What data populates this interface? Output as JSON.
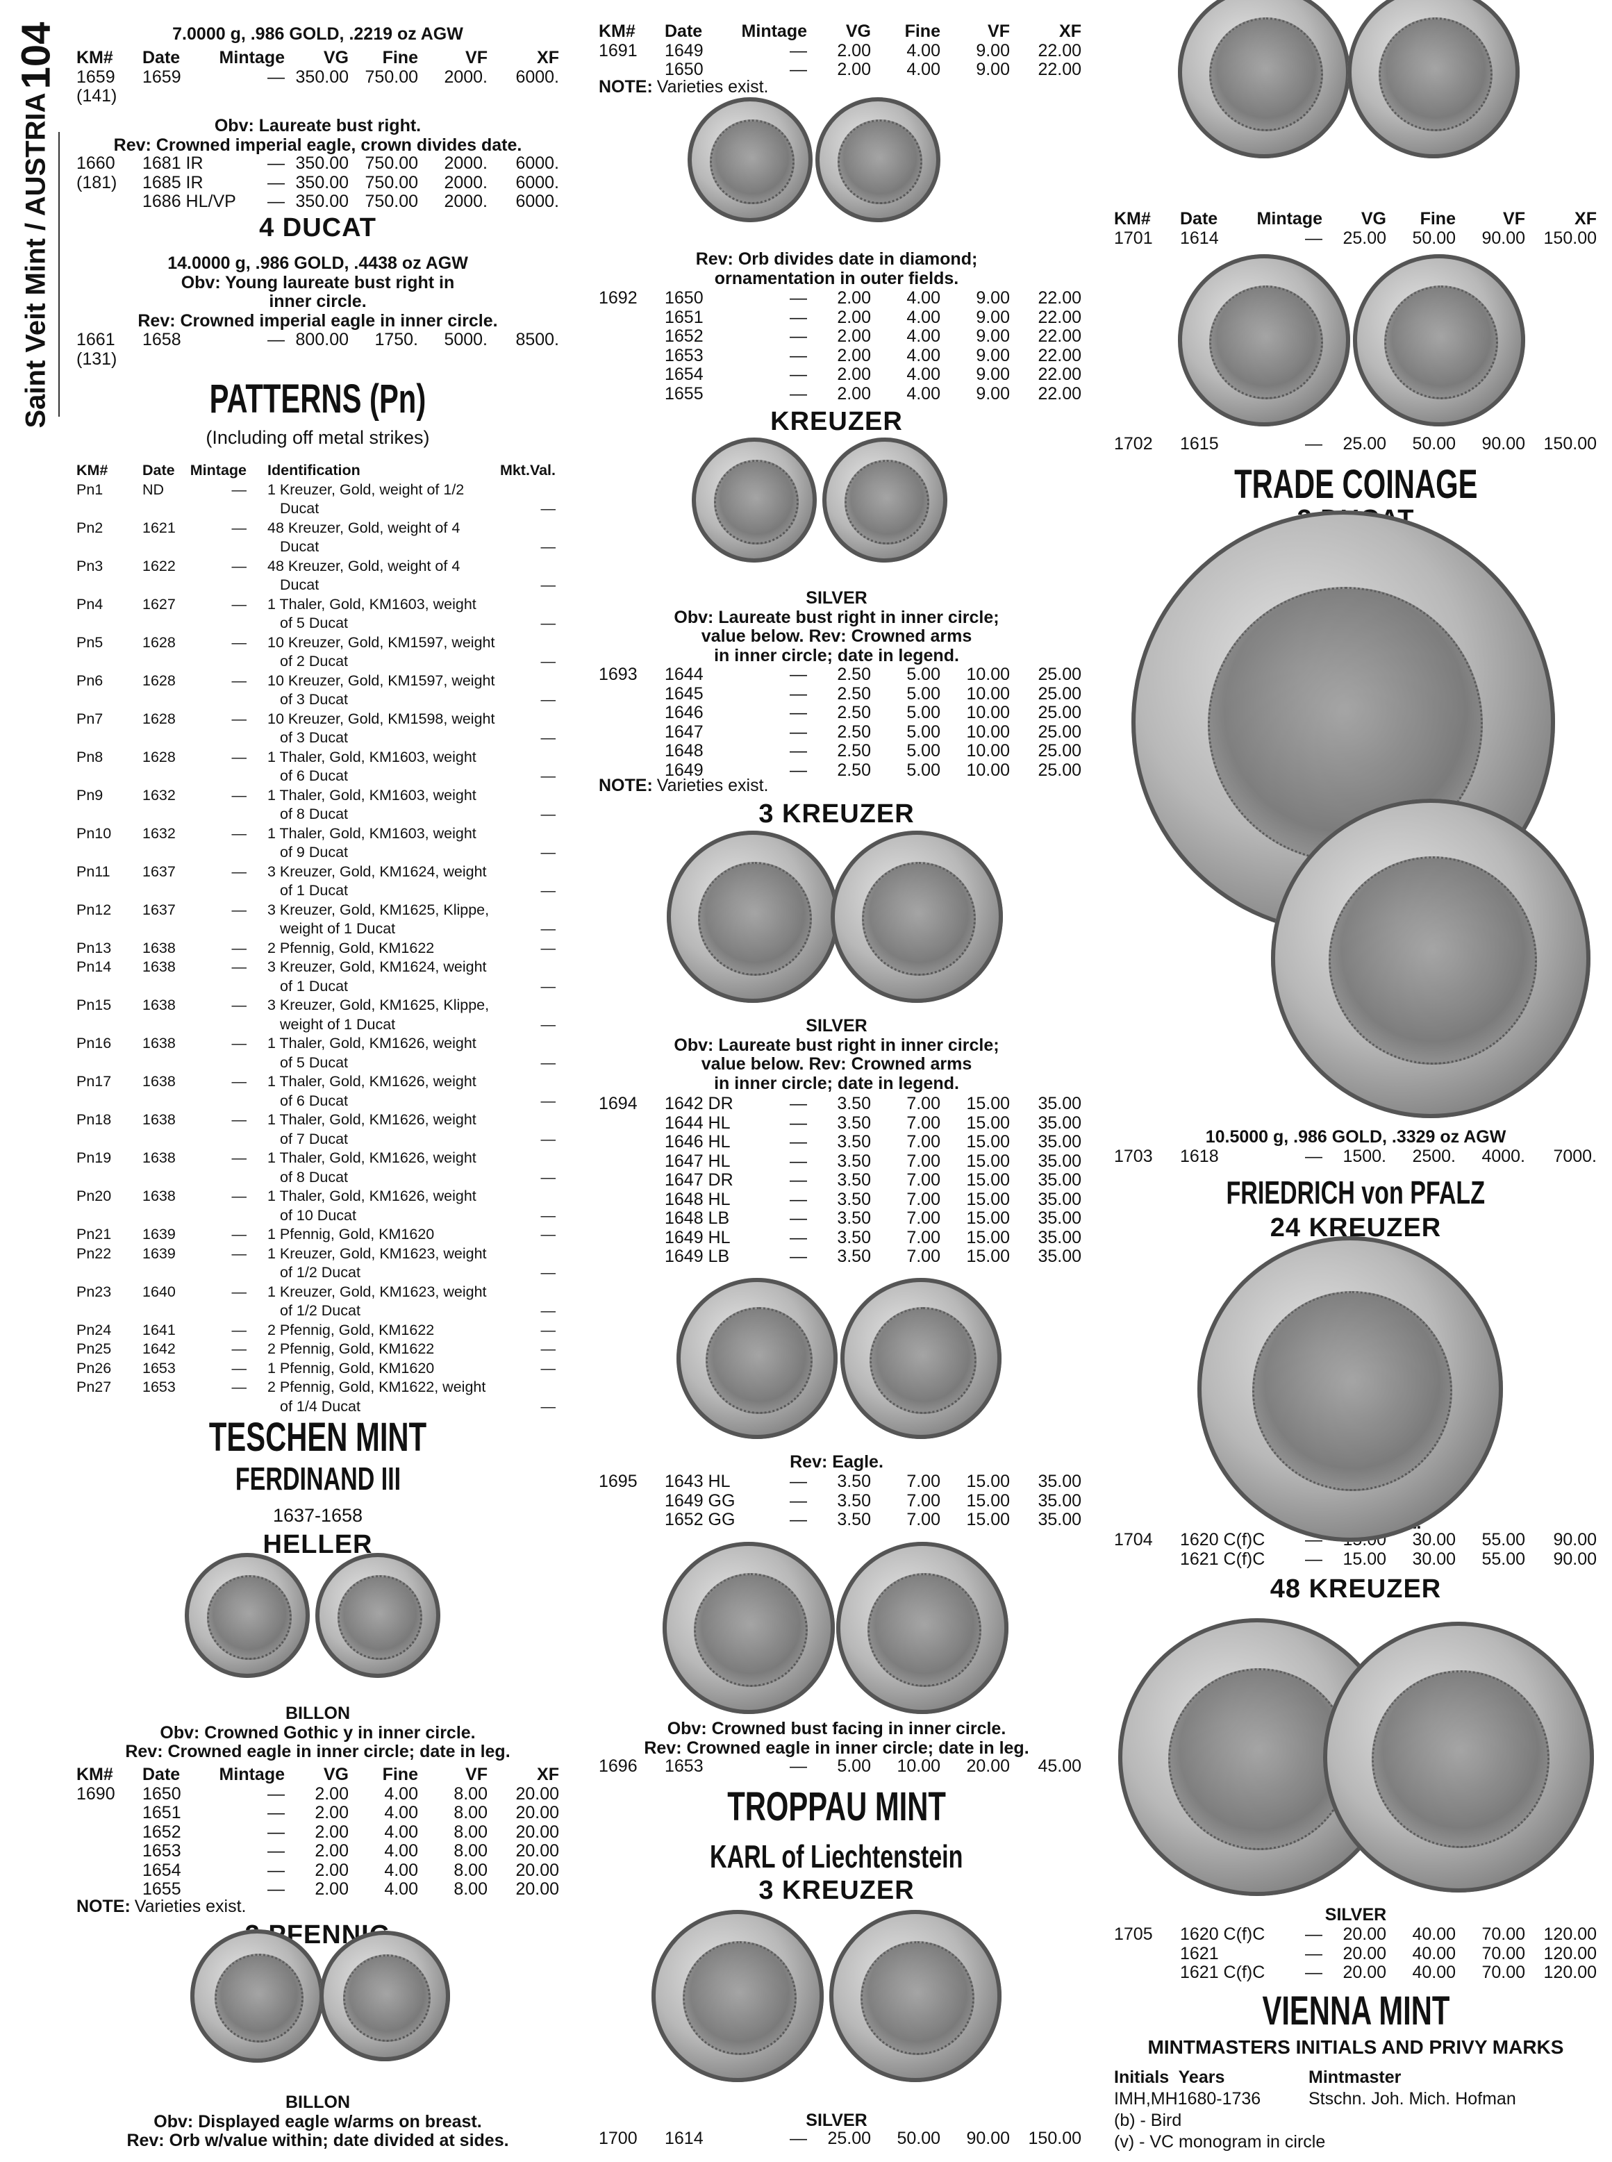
{
  "sidebar": {
    "page_number": "104",
    "running_head": "Saint Veit Mint / AUSTRIA"
  },
  "headers": {
    "price": [
      "KM#",
      "Date",
      "Mintage",
      "VG",
      "Fine",
      "VF",
      "XF"
    ],
    "patterns": [
      "KM#",
      "Date",
      "Mintage",
      "Identification",
      "Mkt.Val."
    ]
  },
  "left": {
    "items": [
      {
        "type": "center",
        "lines": [
          "7.0000 g, .986 GOLD, .2219 oz AGW"
        ],
        "bold": true
      },
      {
        "type": "table",
        "header": true,
        "rows": [
          [
            "1659",
            "1659",
            "—",
            "350.00",
            "750.00",
            "2000.",
            "6000."
          ],
          [
            "(141)",
            "",
            "",
            "",
            "",
            "",
            ""
          ]
        ]
      },
      {
        "type": "center",
        "bold": true,
        "lines": [
          "Obv: Laureate bust right.",
          "Rev: Crowned imperial eagle, crown divides date."
        ]
      },
      {
        "type": "table",
        "rows": [
          [
            "1660",
            "1681 IR",
            "—",
            "350.00",
            "750.00",
            "2000.",
            "6000."
          ],
          [
            "(181)",
            "1685 IR",
            "—",
            "350.00",
            "750.00",
            "2000.",
            "6000."
          ],
          [
            "",
            "1686 HL/VP",
            "—",
            "350.00",
            "750.00",
            "2000.",
            "6000."
          ]
        ]
      },
      {
        "type": "denom",
        "text": "4 DUCAT"
      },
      {
        "type": "center",
        "bold": true,
        "lines": [
          "14.0000 g, .986 GOLD, .4438 oz AGW",
          "Obv: Young laureate bust right in",
          "inner circle.",
          "Rev: Crowned imperial eagle in inner circle."
        ]
      },
      {
        "type": "table",
        "rows": [
          [
            "1661",
            "1658",
            "—",
            "800.00",
            "1750.",
            "5000.",
            "8500."
          ],
          [
            "(131)",
            "",
            "",
            "",
            "",
            "",
            ""
          ]
        ]
      },
      {
        "type": "title",
        "text": "PATTERNS (Pn)"
      },
      {
        "type": "sub",
        "text": "(Including off metal strikes)"
      },
      {
        "type": "patterns",
        "rows": [
          [
            "Pn1",
            "ND",
            "—",
            "1 Kreuzer, Gold, weight of 1/2",
            "Ducat",
            "—"
          ],
          [
            "Pn2",
            "1621",
            "—",
            "48 Kreuzer, Gold, weight of 4",
            "Ducat",
            "—"
          ],
          [
            "Pn3",
            "1622",
            "—",
            "48 Kreuzer, Gold, weight of 4",
            "Ducat",
            "—"
          ],
          [
            "Pn4",
            "1627",
            "—",
            "1 Thaler, Gold, KM1603, weight",
            "of 5 Ducat",
            "—"
          ],
          [
            "Pn5",
            "1628",
            "—",
            "10 Kreuzer, Gold, KM1597, weight",
            "of 2 Ducat",
            "—"
          ],
          [
            "Pn6",
            "1628",
            "—",
            "10 Kreuzer, Gold, KM1597, weight",
            "of 3 Ducat",
            "—"
          ],
          [
            "Pn7",
            "1628",
            "—",
            "10 Kreuzer, Gold, KM1598, weight",
            "of 3 Ducat",
            "—"
          ],
          [
            "Pn8",
            "1628",
            "—",
            "1 Thaler, Gold, KM1603, weight",
            "of 6 Ducat",
            "—"
          ],
          [
            "Pn9",
            "1632",
            "—",
            "1 Thaler, Gold, KM1603, weight",
            "of 8 Ducat",
            "—"
          ],
          [
            "Pn10",
            "1632",
            "—",
            "1 Thaler, Gold, KM1603, weight",
            "of 9 Ducat",
            "—"
          ],
          [
            "Pn11",
            "1637",
            "—",
            "3 Kreuzer, Gold, KM1624, weight",
            "of 1 Ducat",
            "—"
          ],
          [
            "Pn12",
            "1637",
            "—",
            "3 Kreuzer, Gold, KM1625, Klippe,",
            "weight of 1 Ducat",
            "—"
          ],
          [
            "Pn13",
            "1638",
            "—",
            "2 Pfennig, Gold, KM1622",
            "",
            "—"
          ],
          [
            "Pn14",
            "1638",
            "—",
            "3 Kreuzer, Gold, KM1624, weight",
            "of 1 Ducat",
            "—"
          ],
          [
            "Pn15",
            "1638",
            "—",
            "3 Kreuzer, Gold, KM1625, Klippe,",
            "weight of 1 Ducat",
            "—"
          ],
          [
            "Pn16",
            "1638",
            "—",
            "1 Thaler, Gold, KM1626, weight",
            "of 5 Ducat",
            "—"
          ],
          [
            "Pn17",
            "1638",
            "—",
            "1 Thaler, Gold, KM1626, weight",
            "of 6 Ducat",
            "—"
          ],
          [
            "Pn18",
            "1638",
            "—",
            "1 Thaler, Gold, KM1626, weight",
            "of 7 Ducat",
            "—"
          ],
          [
            "Pn19",
            "1638",
            "—",
            "1 Thaler, Gold, KM1626, weight",
            "of 8 Ducat",
            "—"
          ],
          [
            "Pn20",
            "1638",
            "—",
            "1 Thaler, Gold, KM1626, weight",
            "of 10 Ducat",
            "—"
          ],
          [
            "Pn21",
            "1639",
            "—",
            "1 Pfennig, Gold, KM1620",
            "",
            "—"
          ],
          [
            "Pn22",
            "1639",
            "—",
            "1 Kreuzer, Gold, KM1623, weight",
            "of 1/2 Ducat",
            "—"
          ],
          [
            "Pn23",
            "1640",
            "—",
            "1 Kreuzer, Gold, KM1623, weight",
            "of 1/2 Ducat",
            "—"
          ],
          [
            "Pn24",
            "1641",
            "—",
            "2 Pfennig, Gold, KM1622",
            "",
            "—"
          ],
          [
            "Pn25",
            "1642",
            "—",
            "2 Pfennig, Gold, KM1622",
            "",
            "—"
          ],
          [
            "Pn26",
            "1653",
            "—",
            "1 Pfennig, Gold, KM1620",
            "",
            "—"
          ],
          [
            "Pn27",
            "1653",
            "—",
            "2 Pfennig, Gold, KM1622, weight",
            "of 1/4 Ducat",
            "—"
          ]
        ]
      },
      {
        "type": "title",
        "text": "TESCHEN MINT"
      },
      {
        "type": "title2",
        "text": "FERDINAND III"
      },
      {
        "type": "sub",
        "text": "1637-1658"
      },
      {
        "type": "denom",
        "text": "HELLER"
      },
      {
        "type": "coins"
      },
      {
        "type": "center",
        "bold": true,
        "lines": [
          "BILLON",
          "Obv: Crowned Gothic y in inner circle.",
          "Rev: Crowned eagle in inner circle; date in leg."
        ]
      },
      {
        "type": "table",
        "header": true,
        "rows": [
          [
            "1690",
            "1650",
            "—",
            "2.00",
            "4.00",
            "8.00",
            "20.00"
          ],
          [
            "",
            "1651",
            "—",
            "2.00",
            "4.00",
            "8.00",
            "20.00"
          ],
          [
            "",
            "1652",
            "—",
            "2.00",
            "4.00",
            "8.00",
            "20.00"
          ],
          [
            "",
            "1653",
            "—",
            "2.00",
            "4.00",
            "8.00",
            "20.00"
          ],
          [
            "",
            "1654",
            "—",
            "2.00",
            "4.00",
            "8.00",
            "20.00"
          ],
          [
            "",
            "1655",
            "—",
            "2.00",
            "4.00",
            "8.00",
            "20.00"
          ]
        ]
      },
      {
        "type": "note",
        "label": "NOTE:",
        "text": "Varieties exist."
      },
      {
        "type": "denom",
        "text": "3 PFENNIG"
      },
      {
        "type": "coins"
      },
      {
        "type": "center",
        "bold": true,
        "lines": [
          "BILLON",
          "Obv: Displayed eagle w/arms on breast.",
          "Rev: Orb w/value within; date divided at sides."
        ]
      }
    ]
  },
  "middle": {
    "items": [
      {
        "type": "table",
        "header": true,
        "rows": [
          [
            "1691",
            "1649",
            "—",
            "2.00",
            "4.00",
            "9.00",
            "22.00"
          ],
          [
            "",
            "1650",
            "—",
            "2.00",
            "4.00",
            "9.00",
            "22.00"
          ]
        ]
      },
      {
        "type": "note",
        "label": "NOTE:",
        "text": "Varieties exist."
      },
      {
        "type": "coins"
      },
      {
        "type": "center",
        "bold": true,
        "lines": [
          "Rev: Orb divides date in diamond;",
          "ornamentation in outer fields."
        ]
      },
      {
        "type": "table",
        "rows": [
          [
            "1692",
            "1650",
            "—",
            "2.00",
            "4.00",
            "9.00",
            "22.00"
          ],
          [
            "",
            "1651",
            "—",
            "2.00",
            "4.00",
            "9.00",
            "22.00"
          ],
          [
            "",
            "1652",
            "—",
            "2.00",
            "4.00",
            "9.00",
            "22.00"
          ],
          [
            "",
            "1653",
            "—",
            "2.00",
            "4.00",
            "9.00",
            "22.00"
          ],
          [
            "",
            "1654",
            "—",
            "2.00",
            "4.00",
            "9.00",
            "22.00"
          ],
          [
            "",
            "1655",
            "—",
            "2.00",
            "4.00",
            "9.00",
            "22.00"
          ]
        ]
      },
      {
        "type": "denom",
        "text": "KREUZER"
      },
      {
        "type": "coins"
      },
      {
        "type": "center",
        "bold": true,
        "lines": [
          "SILVER",
          "Obv: Laureate bust right in inner circle;",
          "value below. Rev: Crowned arms",
          "in inner circle; date in legend."
        ]
      },
      {
        "type": "table",
        "rows": [
          [
            "1693",
            "1644",
            "—",
            "2.50",
            "5.00",
            "10.00",
            "25.00"
          ],
          [
            "",
            "1645",
            "—",
            "2.50",
            "5.00",
            "10.00",
            "25.00"
          ],
          [
            "",
            "1646",
            "—",
            "2.50",
            "5.00",
            "10.00",
            "25.00"
          ],
          [
            "",
            "1647",
            "—",
            "2.50",
            "5.00",
            "10.00",
            "25.00"
          ],
          [
            "",
            "1648",
            "—",
            "2.50",
            "5.00",
            "10.00",
            "25.00"
          ],
          [
            "",
            "1649",
            "—",
            "2.50",
            "5.00",
            "10.00",
            "25.00"
          ]
        ]
      },
      {
        "type": "note",
        "label": "NOTE:",
        "text": "Varieties exist."
      },
      {
        "type": "denom",
        "text": "3 KREUZER"
      },
      {
        "type": "coins"
      },
      {
        "type": "center",
        "bold": true,
        "lines": [
          "SILVER",
          "Obv: Laureate bust right in inner circle;",
          "value below. Rev: Crowned arms",
          "in inner circle; date in legend."
        ]
      },
      {
        "type": "table",
        "rows": [
          [
            "1694",
            "1642 DR",
            "—",
            "3.50",
            "7.00",
            "15.00",
            "35.00"
          ],
          [
            "",
            "1644 HL",
            "—",
            "3.50",
            "7.00",
            "15.00",
            "35.00"
          ],
          [
            "",
            "1646 HL",
            "—",
            "3.50",
            "7.00",
            "15.00",
            "35.00"
          ],
          [
            "",
            "1647 HL",
            "—",
            "3.50",
            "7.00",
            "15.00",
            "35.00"
          ],
          [
            "",
            "1647 DR",
            "—",
            "3.50",
            "7.00",
            "15.00",
            "35.00"
          ],
          [
            "",
            "1648 HL",
            "—",
            "3.50",
            "7.00",
            "15.00",
            "35.00"
          ],
          [
            "",
            "1648 LB",
            "—",
            "3.50",
            "7.00",
            "15.00",
            "35.00"
          ],
          [
            "",
            "1649 HL",
            "—",
            "3.50",
            "7.00",
            "15.00",
            "35.00"
          ],
          [
            "",
            "1649 LB",
            "—",
            "3.50",
            "7.00",
            "15.00",
            "35.00"
          ]
        ]
      },
      {
        "type": "coins"
      },
      {
        "type": "center",
        "bold": true,
        "lines": [
          "Rev: Eagle."
        ]
      },
      {
        "type": "table",
        "rows": [
          [
            "1695",
            "1643 HL",
            "—",
            "3.50",
            "7.00",
            "15.00",
            "35.00"
          ],
          [
            "",
            "1649 GG",
            "—",
            "3.50",
            "7.00",
            "15.00",
            "35.00"
          ],
          [
            "",
            "1652 GG",
            "—",
            "3.50",
            "7.00",
            "15.00",
            "35.00"
          ]
        ]
      },
      {
        "type": "coins"
      },
      {
        "type": "center",
        "bold": true,
        "lines": [
          "Obv: Crowned bust facing in inner circle.",
          "Rev: Crowned eagle in inner circle; date in leg."
        ]
      },
      {
        "type": "table",
        "rows": [
          [
            "1696",
            "1653",
            "—",
            "5.00",
            "10.00",
            "20.00",
            "45.00"
          ]
        ]
      },
      {
        "type": "title",
        "text": "TROPPAU MINT"
      },
      {
        "type": "title2",
        "text": "KARL of Liechtenstein"
      },
      {
        "type": "denom",
        "text": "3 KREUZER"
      },
      {
        "type": "coins"
      },
      {
        "type": "center",
        "bold": true,
        "lines": [
          "SILVER"
        ]
      },
      {
        "type": "table",
        "rows": [
          [
            "1700",
            "1614",
            "—",
            "25.00",
            "50.00",
            "90.00",
            "150.00"
          ]
        ]
      }
    ]
  },
  "right": {
    "items": [
      {
        "type": "coins"
      },
      {
        "type": "table",
        "header": true,
        "rows": [
          [
            "1701",
            "1614",
            "—",
            "25.00",
            "50.00",
            "90.00",
            "150.00"
          ]
        ]
      },
      {
        "type": "coins"
      },
      {
        "type": "table",
        "rows": [
          [
            "1702",
            "1615",
            "—",
            "25.00",
            "50.00",
            "90.00",
            "150.00"
          ]
        ]
      },
      {
        "type": "title",
        "text": "TRADE COINAGE"
      },
      {
        "type": "denom",
        "text": "3 DUCAT"
      },
      {
        "type": "coins"
      },
      {
        "type": "center",
        "bold": true,
        "lines": [
          "10.5000 g, .986 GOLD, .3329 oz AGW"
        ]
      },
      {
        "type": "table",
        "rows": [
          [
            "1703",
            "1618",
            "—",
            "1500.",
            "2500.",
            "4000.",
            "7000."
          ]
        ]
      },
      {
        "type": "title2",
        "text": "FRIEDRICH von PFALZ"
      },
      {
        "type": "denom",
        "text": "24 KREUZER"
      },
      {
        "type": "coins"
      },
      {
        "type": "center",
        "bold": true,
        "lines": [
          "SILVER",
          "Obv: Bust right."
        ]
      },
      {
        "type": "table",
        "rows": [
          [
            "1704",
            "1620 C(f)C",
            "—",
            "15.00",
            "30.00",
            "55.00",
            "90.00"
          ],
          [
            "",
            "1621 C(f)C",
            "—",
            "15.00",
            "30.00",
            "55.00",
            "90.00"
          ]
        ]
      },
      {
        "type": "denom",
        "text": "48 KREUZER"
      },
      {
        "type": "coins"
      },
      {
        "type": "center",
        "bold": true,
        "lines": [
          "SILVER"
        ]
      },
      {
        "type": "table",
        "rows": [
          [
            "1705",
            "1620 C(f)C",
            "—",
            "20.00",
            "40.00",
            "70.00",
            "120.00"
          ],
          [
            "",
            "1621",
            "—",
            "20.00",
            "40.00",
            "70.00",
            "120.00"
          ],
          [
            "",
            "1621 C(f)C",
            "—",
            "20.00",
            "40.00",
            "70.00",
            "120.00"
          ]
        ]
      },
      {
        "type": "title",
        "text": "VIENNA MINT"
      },
      {
        "type": "sub",
        "bold": true,
        "text": "MINTMASTERS INITIALS AND PRIVY MARKS"
      },
      {
        "type": "mintmasters",
        "headers": [
          "Initials  Years",
          "Mintmaster"
        ],
        "rows": [
          [
            "IMH,MH1680-1736",
            "Stschn. Joh. Mich. Hofman"
          ]
        ],
        "marks": [
          "(b) - Bird",
          "(v) - VC monogram in circle"
        ]
      }
    ]
  }
}
